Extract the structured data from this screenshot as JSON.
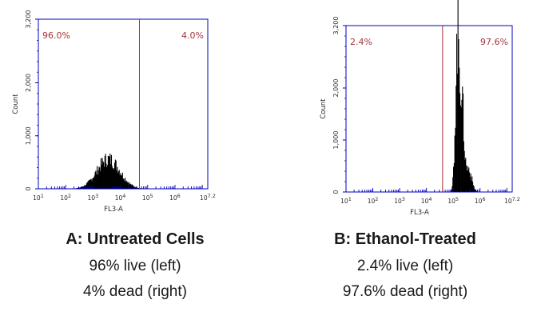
{
  "colors": {
    "axis": "#0000c0",
    "gate": "#a3333d",
    "histogram": "#000000"
  },
  "chart_data": [
    {
      "type": "histogram",
      "title": "",
      "xlabel": "FL3-A",
      "ylabel": "Count",
      "xscale": "log",
      "xlim": [
        10,
        15848932
      ],
      "ylim": [
        0,
        3200
      ],
      "y_ticks": [
        "0",
        "1,000",
        "2,000",
        "3,200"
      ],
      "x_ticks": [
        {
          "value": 10,
          "base": "10",
          "exp": "1"
        },
        {
          "value": 100,
          "base": "10",
          "exp": "2"
        },
        {
          "value": 1000,
          "base": "10",
          "exp": "3"
        },
        {
          "value": 10000,
          "base": "10",
          "exp": "4"
        },
        {
          "value": 100000,
          "base": "10",
          "exp": "5"
        },
        {
          "value": 1000000,
          "base": "10",
          "exp": "6"
        },
        {
          "value": 15848932,
          "base": "10",
          "exp": "7.2"
        }
      ],
      "gate_x": 50000,
      "gate_labels": {
        "left": "96.0%",
        "right": "4.0%"
      },
      "peaks": [
        {
          "center_log": 3.55,
          "sigma_log": 0.42,
          "height": 560
        }
      ],
      "caption": {
        "title": "A: Untreated Cells",
        "line1": "96% live (left)",
        "line2": "4% dead (right)"
      }
    },
    {
      "type": "histogram",
      "title": "",
      "xlabel": "FL3-A",
      "ylabel": "Count",
      "xscale": "log",
      "xlim": [
        10,
        15848932
      ],
      "ylim": [
        0,
        3200
      ],
      "y_ticks": [
        "0",
        "1,000",
        "2,000",
        "3,200"
      ],
      "x_ticks": [
        {
          "value": 10,
          "base": "10",
          "exp": "1"
        },
        {
          "value": 100,
          "base": "10",
          "exp": "2"
        },
        {
          "value": 1000,
          "base": "10",
          "exp": "3"
        },
        {
          "value": 10000,
          "base": "10",
          "exp": "4"
        },
        {
          "value": 100000,
          "base": "10",
          "exp": "5"
        },
        {
          "value": 1000000,
          "base": "10",
          "exp": "6"
        },
        {
          "value": 15848932,
          "base": "10",
          "exp": "7.2"
        }
      ],
      "gate_x": 40000,
      "gate_labels": {
        "left": "2.4%",
        "right": "97.6%"
      },
      "peaks": [
        {
          "center_log": 5.15,
          "sigma_log": 0.08,
          "height": 2900
        },
        {
          "center_log": 5.32,
          "sigma_log": 0.07,
          "height": 1400
        },
        {
          "center_log": 5.55,
          "sigma_log": 0.12,
          "height": 450
        }
      ],
      "caption": {
        "title": "B: Ethanol-Treated",
        "line1": "2.4% live (left)",
        "line2": "97.6% dead (right)"
      }
    }
  ]
}
